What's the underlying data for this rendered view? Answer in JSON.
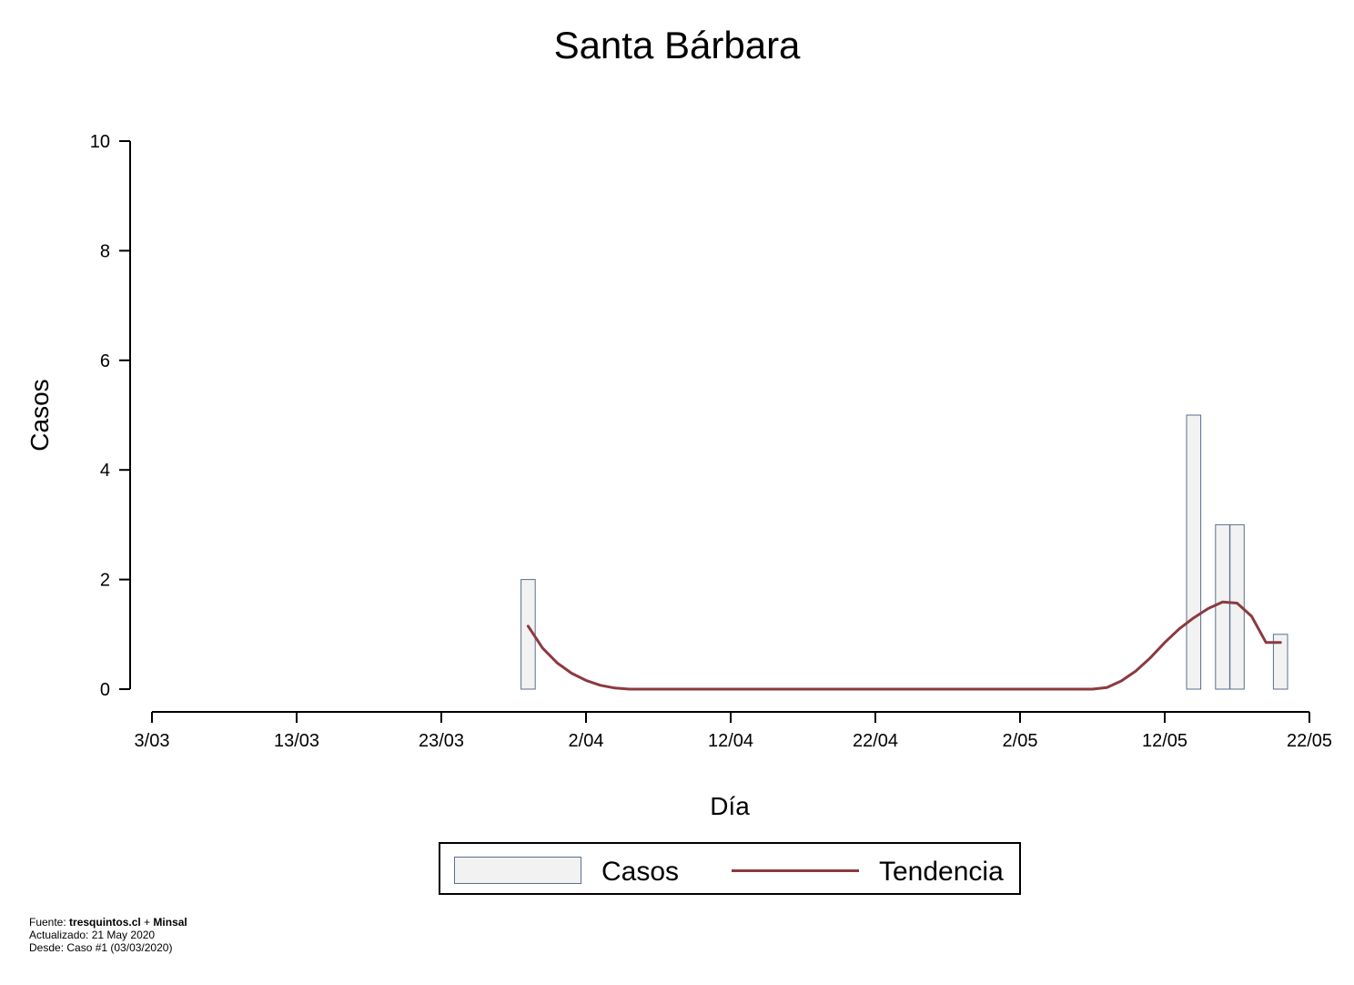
{
  "chart_data": {
    "type": "bar",
    "title": "Santa Bárbara",
    "xlabel": "Día",
    "ylabel": "Casos",
    "ylim": [
      0,
      10
    ],
    "y_ticks": [
      0,
      2,
      4,
      6,
      8,
      10
    ],
    "x_ticks": [
      "3/03",
      "13/03",
      "23/03",
      "2/04",
      "12/04",
      "22/04",
      "2/05",
      "12/05",
      "22/05"
    ],
    "x_tick_days": [
      0,
      10,
      20,
      30,
      40,
      50,
      60,
      70,
      80
    ],
    "x_range_days": [
      0,
      80
    ],
    "series": [
      {
        "name": "Casos",
        "kind": "bar",
        "days": [
          26,
          72,
          74,
          75,
          78
        ],
        "values": [
          2,
          5,
          3,
          3,
          1
        ]
      },
      {
        "name": "Tendencia",
        "kind": "line",
        "days": [
          26,
          27,
          28,
          29,
          30,
          31,
          32,
          33,
          34,
          35,
          36,
          37,
          38,
          39,
          40,
          41,
          42,
          43,
          44,
          45,
          46,
          47,
          48,
          49,
          50,
          51,
          52,
          53,
          54,
          55,
          56,
          57,
          58,
          59,
          60,
          61,
          62,
          63,
          64,
          65,
          66,
          67,
          68,
          69,
          70,
          71,
          72,
          73,
          74,
          75,
          76,
          77,
          78
        ],
        "values": [
          1.15,
          0.75,
          0.48,
          0.29,
          0.16,
          0.07,
          0.02,
          0,
          0,
          0,
          0,
          0,
          0,
          0,
          0,
          0,
          0,
          0,
          0,
          0,
          0,
          0,
          0,
          0,
          0,
          0,
          0,
          0,
          0,
          0,
          0,
          0,
          0,
          0,
          0,
          0,
          0,
          0,
          0,
          0,
          0.03,
          0.15,
          0.33,
          0.57,
          0.85,
          1.1,
          1.3,
          1.47,
          1.59,
          1.57,
          1.33,
          0.85,
          0.85
        ]
      }
    ],
    "legend": {
      "placement": "bottom",
      "entries": [
        "Casos",
        "Tendencia"
      ]
    },
    "colors": {
      "bar_fill": "#f2f2f2",
      "bar_edge": "#5b6e8c",
      "trend": "#8b3a3f"
    },
    "grid": false
  },
  "footer": {
    "source_prefix": "Fuente: ",
    "source_site": "tresquintos.cl",
    "source_sep": " + ",
    "source_org": "Minsal",
    "updated": "Actualizado: 21 May 2020",
    "since": "Desde: Caso #1  (03/03/2020)"
  }
}
